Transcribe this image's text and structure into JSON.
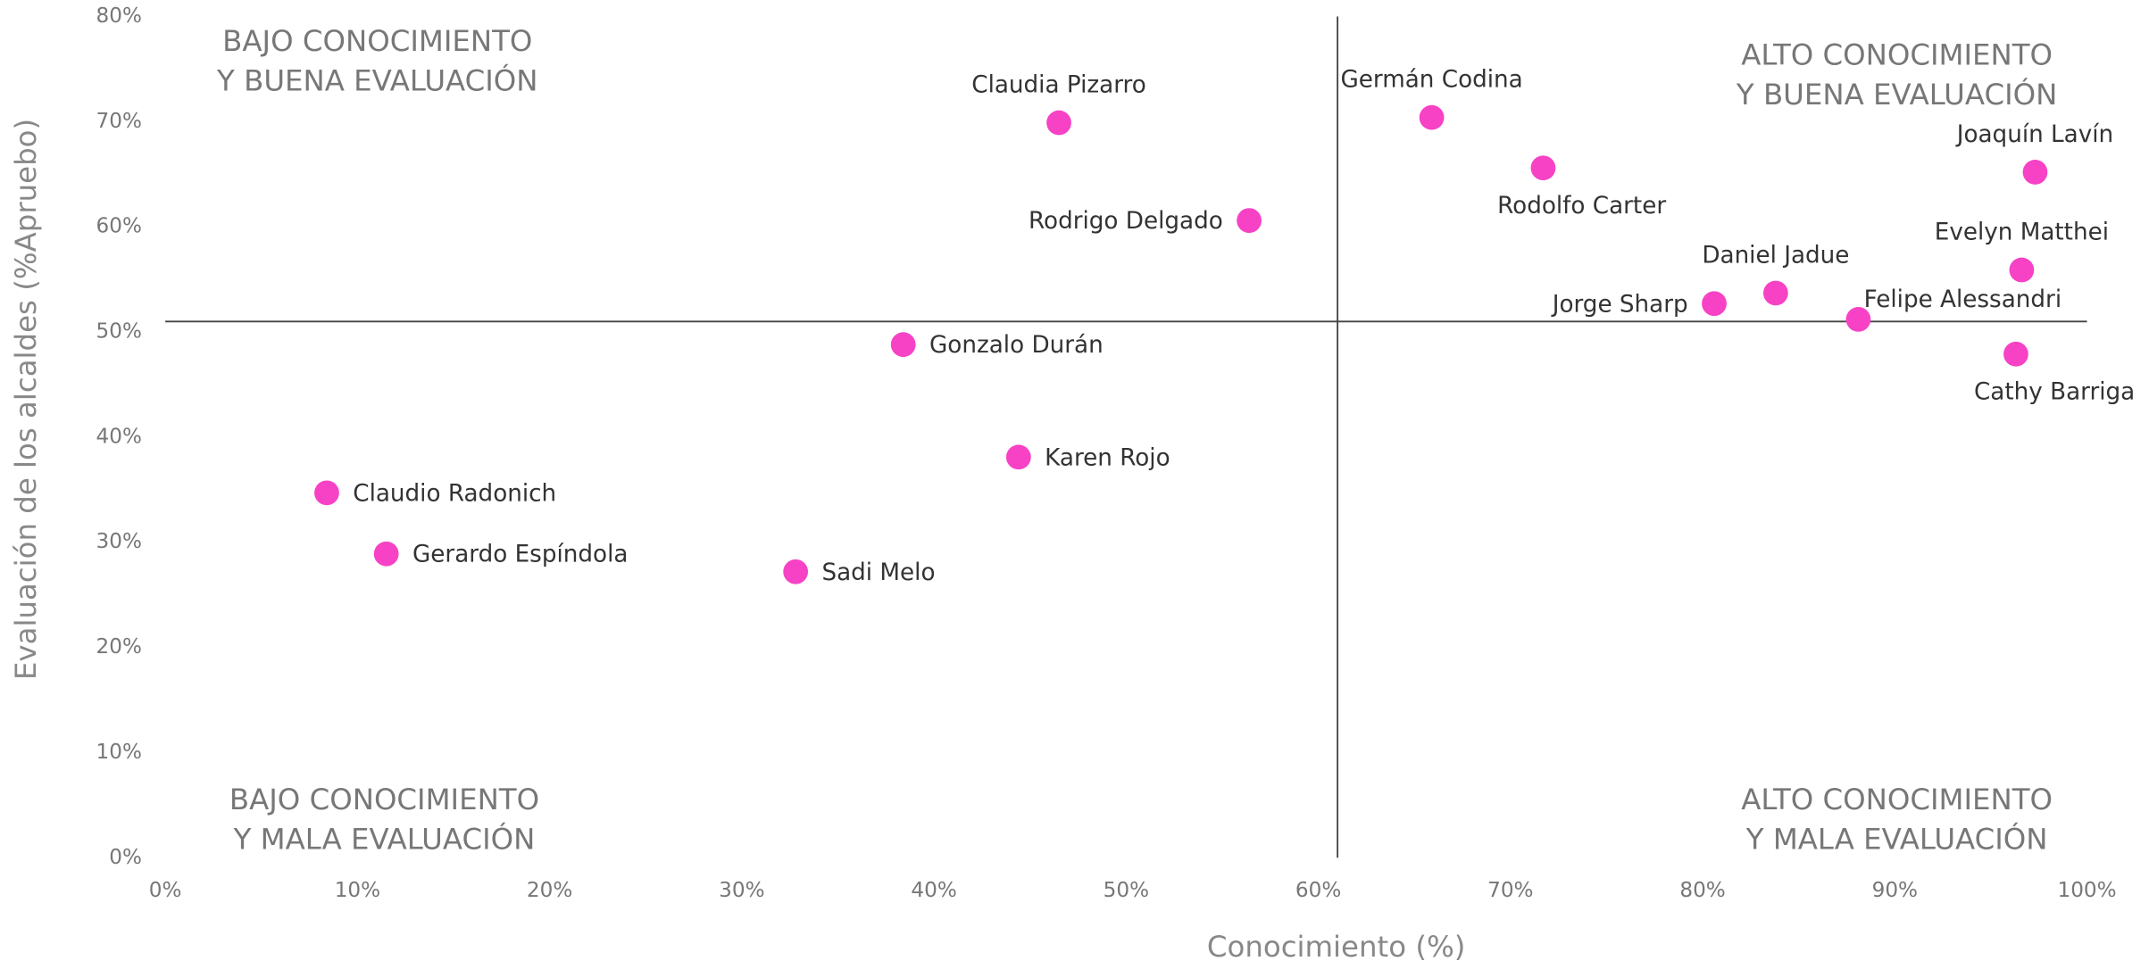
{
  "chart_data": {
    "type": "scatter",
    "xlabel": "Conocimiento (%)",
    "ylabel": "Evaluación de los alcaldes (%Apruebo)",
    "color": "#f742c6",
    "labels": [
      "Claudia Pizarro",
      "Rodrigo Delgado",
      "Germán Codina",
      "Rodolfo Carter",
      "Joaquín Lavín",
      "Evelyn Matthei",
      "Daniel Jadue",
      "Jorge Sharp",
      "Felipe Alessandri",
      "Cathy Barriga",
      "Gonzalo Durán",
      "Karen Rojo",
      "Claudio Radonich",
      "Gerardo Espíndola",
      "Sadi Melo"
    ],
    "x": [
      46.5,
      56.4,
      65.9,
      71.7,
      97.3,
      96.6,
      83.8,
      80.6,
      88.1,
      96.3,
      38.4,
      44.4,
      8.4,
      11.5,
      32.8
    ],
    "values": [
      69.9,
      60.6,
      70.4,
      65.6,
      65.2,
      55.9,
      53.7,
      52.7,
      51.2,
      47.9,
      48.8,
      38.1,
      34.7,
      28.9,
      27.2
    ],
    "reference_x": 61,
    "reference_y": 51,
    "xlim": [
      0,
      100
    ],
    "xticks": [
      {
        "value": 0,
        "label": "0%"
      },
      {
        "value": 10,
        "label": "10%"
      },
      {
        "value": 20,
        "label": "20%"
      },
      {
        "value": 30,
        "label": "30%"
      },
      {
        "value": 40,
        "label": "40%"
      },
      {
        "value": 50,
        "label": "50%"
      },
      {
        "value": 60,
        "label": "60%"
      },
      {
        "value": 70,
        "label": "70%"
      },
      {
        "value": 80,
        "label": "80%"
      },
      {
        "value": 90,
        "label": "90%"
      },
      {
        "value": 100,
        "label": "100%"
      }
    ],
    "ylim": [
      0,
      80
    ],
    "yticks": [
      {
        "value": 0,
        "label": "0%"
      },
      {
        "value": 10,
        "label": "10%"
      },
      {
        "value": 20,
        "label": "20%"
      },
      {
        "value": 30,
        "label": "30%"
      },
      {
        "value": 40,
        "label": "40%"
      },
      {
        "value": 50,
        "label": "50%"
      },
      {
        "value": 60,
        "label": "60%"
      },
      {
        "value": 70,
        "label": "70%"
      },
      {
        "value": 80,
        "label": "80%"
      }
    ],
    "annotations": [
      {
        "lines": [
          "BAJO CONOCIMIENTO",
          "Y BUENA EVALUACIÓN"
        ]
      },
      {
        "lines": [
          "ALTO CONOCIMIENTO",
          "Y BUENA EVALUACIÓN"
        ]
      },
      {
        "lines": [
          "BAJO CONOCIMIENTO",
          "Y MALA EVALUACIÓN"
        ]
      },
      {
        "lines": [
          "ALTO CONOCIMIENTO",
          "Y MALA EVALUACIÓN"
        ]
      }
    ]
  }
}
